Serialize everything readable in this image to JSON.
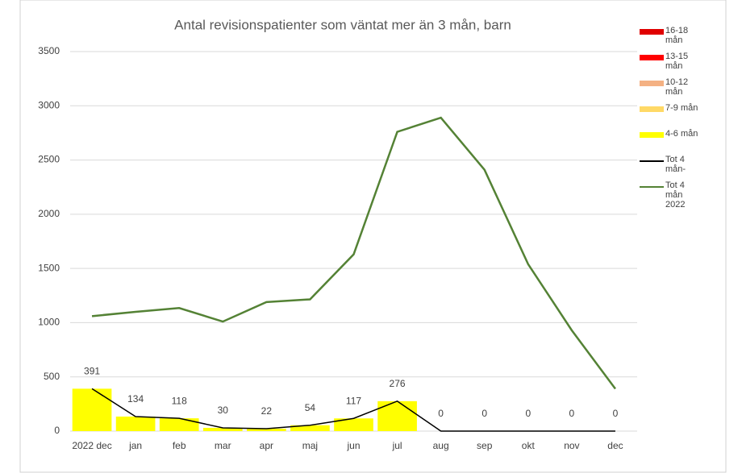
{
  "chart_data": {
    "type": "bar",
    "title": "Antal revisionspatienter som väntat mer än 3 mån, barn",
    "categories": [
      "2022 dec",
      "jan",
      "feb",
      "mar",
      "apr",
      "maj",
      "jun",
      "jul",
      "aug",
      "sep",
      "okt",
      "nov",
      "dec"
    ],
    "series": [
      {
        "name": "16-18 mån",
        "type": "bar",
        "color": "#e00000",
        "values": [
          0,
          0,
          0,
          0,
          0,
          0,
          0,
          0,
          0,
          0,
          0,
          0,
          0
        ]
      },
      {
        "name": "13-15 mån",
        "type": "bar",
        "color": "#ff0000",
        "values": [
          0,
          0,
          0,
          0,
          0,
          0,
          0,
          0,
          0,
          0,
          0,
          0,
          0
        ]
      },
      {
        "name": "10-12 mån",
        "type": "bar",
        "color": "#f4b183",
        "values": [
          0,
          0,
          0,
          0,
          0,
          0,
          0,
          0,
          0,
          0,
          0,
          0,
          0
        ]
      },
      {
        "name": "7-9 mån",
        "type": "bar",
        "color": "#ffd966",
        "values": [
          0,
          0,
          0,
          0,
          0,
          0,
          0,
          0,
          0,
          0,
          0,
          0,
          0
        ]
      },
      {
        "name": "4-6 mån",
        "type": "bar",
        "color": "#ffff00",
        "values": [
          391,
          134,
          118,
          30,
          22,
          54,
          117,
          276,
          0,
          0,
          0,
          0,
          0
        ]
      },
      {
        "name": "Tot 4 mån-",
        "type": "line",
        "color": "#000000",
        "labels": true,
        "values": [
          391,
          134,
          118,
          30,
          22,
          54,
          117,
          276,
          0,
          0,
          0,
          0,
          0
        ]
      },
      {
        "name": "Tot 4 mån 2022",
        "type": "line",
        "color": "#548235",
        "values": [
          1060,
          1100,
          1135,
          1010,
          1190,
          1215,
          1630,
          2760,
          2890,
          2410,
          1540,
          930,
          390
        ]
      }
    ],
    "ylim": [
      0,
      3500
    ],
    "yticks": [
      0,
      500,
      1000,
      1500,
      2000,
      2500,
      3000,
      3500
    ],
    "grid": true,
    "legend": "right"
  }
}
